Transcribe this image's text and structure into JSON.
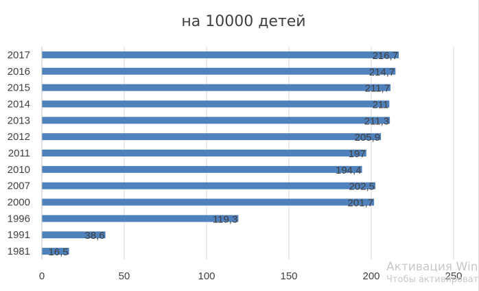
{
  "chart_data": {
    "type": "bar",
    "orientation": "horizontal",
    "title": "на 10000 детей",
    "categories": [
      "2017",
      "2016",
      "2015",
      "2014",
      "2013",
      "2012",
      "2011",
      "2010",
      "2007",
      "2000",
      "1996",
      "1991",
      "1981"
    ],
    "values": [
      216.7,
      214.7,
      211.7,
      211,
      211.3,
      205.9,
      197,
      194.4,
      202.5,
      201.7,
      119.3,
      38.6,
      16.5
    ],
    "data_labels": [
      "216,7",
      "214,7",
      "211,7",
      "211",
      "211,3",
      "205,9",
      "197",
      "194,4",
      "202,5",
      "201,7",
      "119,3",
      "38,6",
      "16,5"
    ],
    "xlim": [
      0,
      250
    ],
    "xticks": [
      "0",
      "50",
      "100",
      "150",
      "200",
      "250"
    ],
    "grid": "vertical",
    "legend": "none",
    "bar_color": "#4f81bd"
  },
  "watermark": {
    "line1": "Активация Win",
    "line2": "Чтобы активироват"
  }
}
